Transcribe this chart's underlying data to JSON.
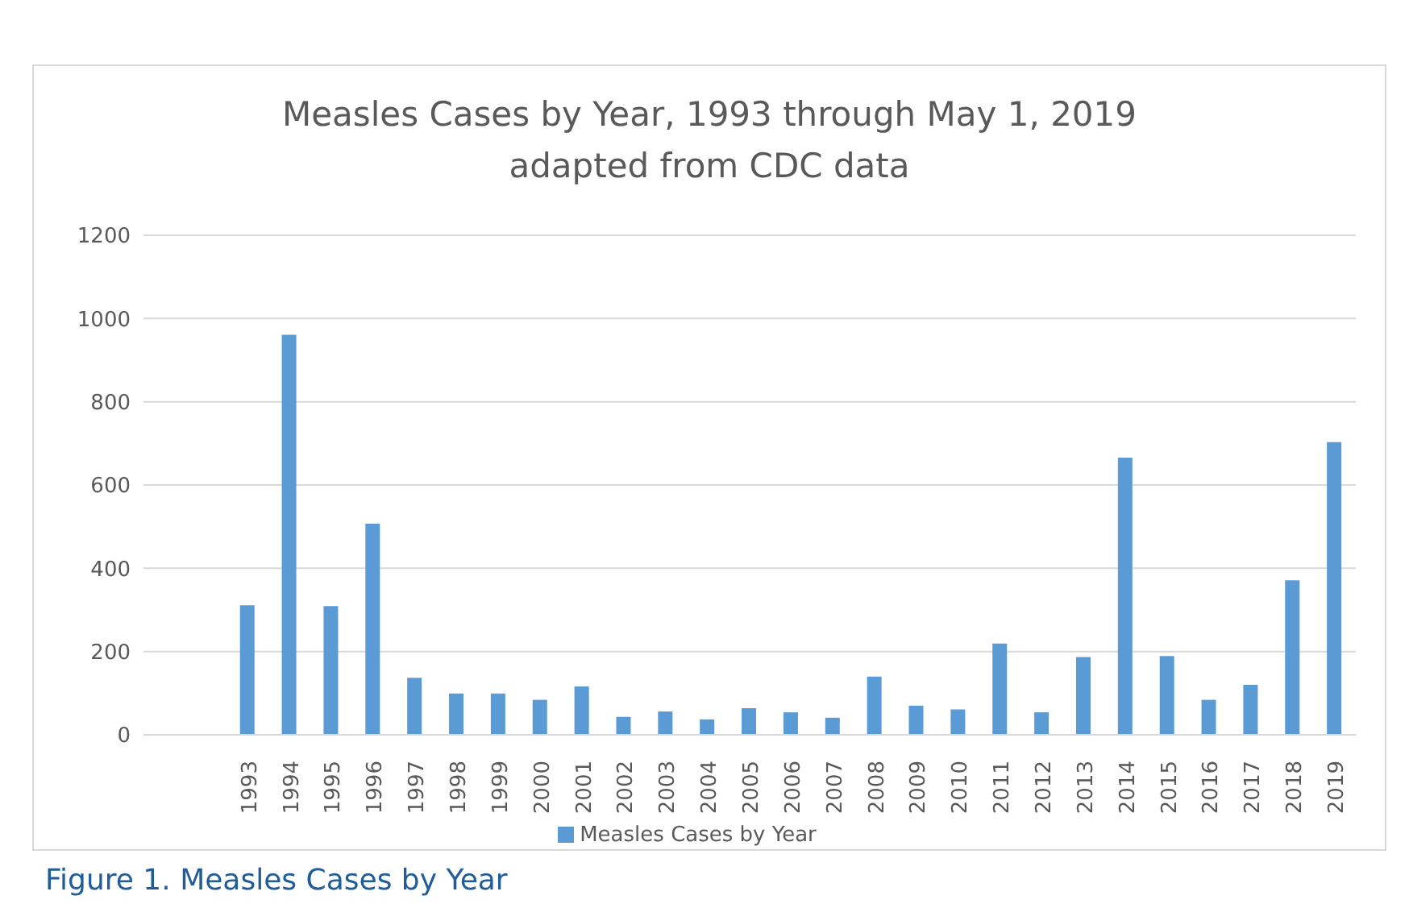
{
  "chart_data": {
    "type": "bar",
    "title": "Measles Cases by Year, 1993 through May 1, 2019",
    "subtitle": "adapted from CDC data",
    "categories": [
      null,
      null,
      "1993",
      "1994",
      "1995",
      "1996",
      "1997",
      "1998",
      "1999",
      "2000",
      "2001",
      "2002",
      "2003",
      "2004",
      "2005",
      "2006",
      "2007",
      "2008",
      "2009",
      "2010",
      "2011",
      "2012",
      "2013",
      "2014",
      "2015",
      "2016",
      "2017",
      "2018",
      "2019"
    ],
    "series": [
      {
        "name": "Measles Cases by Year",
        "color": "#5b9bd5",
        "values": [
          null,
          null,
          311,
          961,
          309,
          507,
          137,
          99,
          99,
          84,
          116,
          43,
          56,
          37,
          64,
          54,
          41,
          140,
          70,
          61,
          219,
          54,
          187,
          666,
          189,
          84,
          120,
          371,
          703
        ]
      }
    ],
    "ylim": [
      0,
      1200
    ],
    "yticks": [
      0,
      200,
      400,
      600,
      800,
      1000,
      1200
    ],
    "grid": "y",
    "legend": "bottom",
    "annotations": [
      "Figure 1. Measles Cases by Year"
    ]
  }
}
